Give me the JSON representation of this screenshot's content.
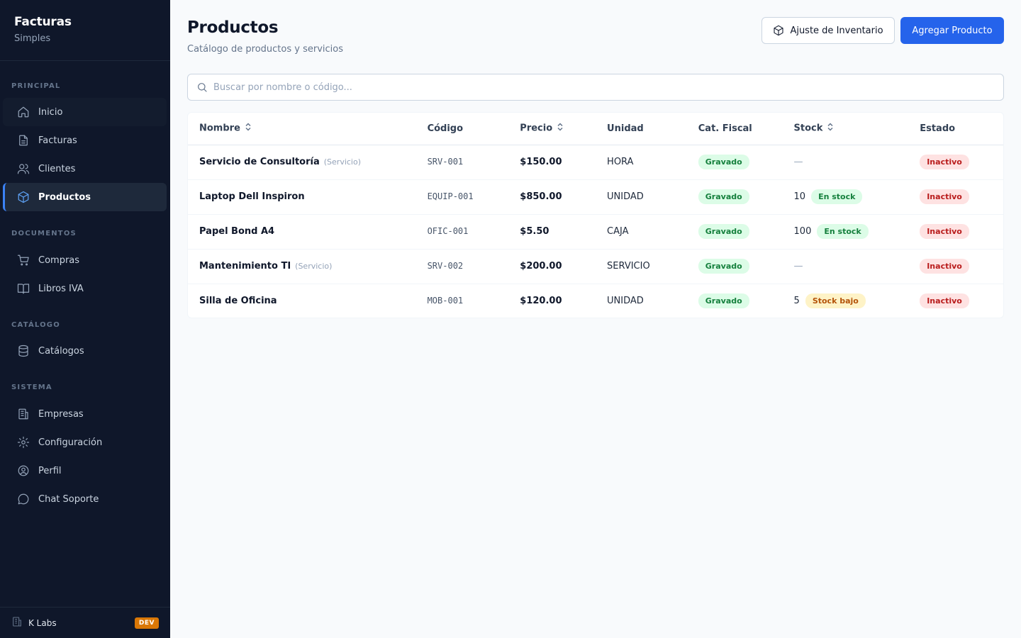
{
  "brand": {
    "title": "Facturas",
    "subtitle": "Simples"
  },
  "sidebar": {
    "sections": [
      {
        "label": "PRINCIPAL"
      },
      {
        "label": "DOCUMENTOS"
      },
      {
        "label": "CATÁLOGO"
      },
      {
        "label": "SISTEMA"
      }
    ],
    "items": [
      {
        "label": "Inicio",
        "icon": "home-icon"
      },
      {
        "label": "Facturas",
        "icon": "file-icon"
      },
      {
        "label": "Clientes",
        "icon": "users-icon"
      },
      {
        "label": "Productos",
        "icon": "package-icon",
        "active": true
      },
      {
        "label": "Compras",
        "icon": "cart-icon"
      },
      {
        "label": "Libros IVA",
        "icon": "book-icon"
      },
      {
        "label": "Catálogos",
        "icon": "database-icon"
      },
      {
        "label": "Empresas",
        "icon": "building-icon"
      },
      {
        "label": "Configuración",
        "icon": "gear-icon"
      },
      {
        "label": "Perfil",
        "icon": "user-circle-icon"
      },
      {
        "label": "Chat Soporte",
        "icon": "chat-icon"
      }
    ],
    "footer": {
      "company": "K Labs",
      "env_badge": "DEV"
    }
  },
  "header": {
    "title": "Productos",
    "subtitle": "Catálogo de productos y servicios",
    "adjust_button": "Ajuste de Inventario",
    "add_button": "Agregar Producto"
  },
  "search": {
    "placeholder": "Buscar por nombre o código..."
  },
  "table": {
    "columns": [
      "Nombre",
      "Código",
      "Precio",
      "Unidad",
      "Cat. Fiscal",
      "Stock",
      "Estado"
    ],
    "rows": [
      {
        "name": "Servicio de Consultoría",
        "type": "(Servicio)",
        "code": "SRV-001",
        "price": "$150.00",
        "unit": "HORA",
        "fiscal": "Gravado",
        "stock": "—",
        "stock_badge": "",
        "status": "Inactivo"
      },
      {
        "name": "Laptop Dell Inspiron",
        "type": "",
        "code": "EQUIP-001",
        "price": "$850.00",
        "unit": "UNIDAD",
        "fiscal": "Gravado",
        "stock": "10",
        "stock_badge": "En stock",
        "status": "Inactivo"
      },
      {
        "name": "Papel Bond A4",
        "type": "",
        "code": "OFIC-001",
        "price": "$5.50",
        "unit": "CAJA",
        "fiscal": "Gravado",
        "stock": "100",
        "stock_badge": "En stock",
        "status": "Inactivo"
      },
      {
        "name": "Mantenimiento TI",
        "type": "(Servicio)",
        "code": "SRV-002",
        "price": "$200.00",
        "unit": "SERVICIO",
        "fiscal": "Gravado",
        "stock": "—",
        "stock_badge": "",
        "status": "Inactivo"
      },
      {
        "name": "Silla de Oficina",
        "type": "",
        "code": "MOB-001",
        "price": "$120.00",
        "unit": "UNIDAD",
        "fiscal": "Gravado",
        "stock": "5",
        "stock_badge": "Stock bajo",
        "status": "Inactivo"
      }
    ]
  },
  "colors": {
    "sidebar_bg": "#0f172a",
    "accent": "#2563eb",
    "active_border": "#3b82f6",
    "dev_badge": "#d97706"
  }
}
